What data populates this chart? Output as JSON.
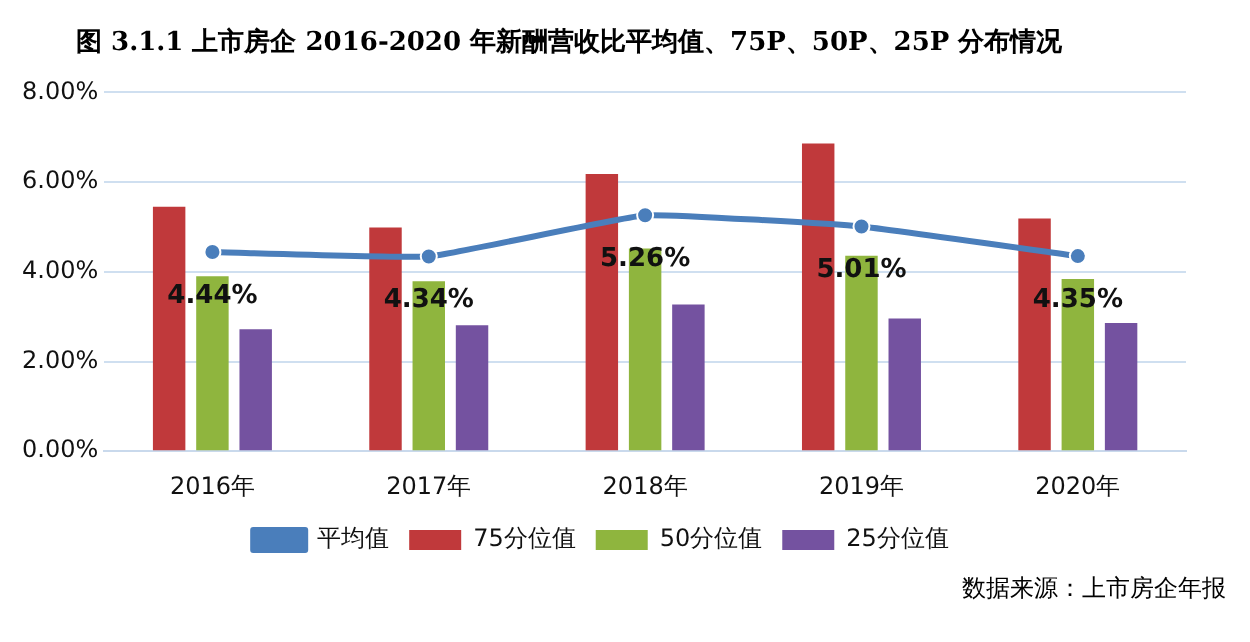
{
  "chart_data": {
    "type": "bar",
    "title": "图 3.1.1 上市房企 2016-2020 年新酬营收比平均值、75P、50P、25P 分布情况",
    "categories": [
      "2016年",
      "2017年",
      "2018年",
      "2019年",
      "2020年"
    ],
    "series": [
      {
        "name": "75分位值",
        "color": "#c0393b",
        "values": [
          5.45,
          4.99,
          6.18,
          6.86,
          5.19
        ]
      },
      {
        "name": "50分位值",
        "color": "#8fb53e",
        "values": [
          3.9,
          3.79,
          4.52,
          4.36,
          3.84
        ]
      },
      {
        "name": "25分位值",
        "color": "#7452a0",
        "values": [
          2.72,
          2.81,
          3.27,
          2.96,
          2.86
        ]
      },
      {
        "name": "平均值",
        "type": "line",
        "color": "#4a7ebb",
        "marker": "circle",
        "values": [
          4.44,
          4.34,
          5.26,
          5.01,
          4.35
        ],
        "value_labels": [
          "4.44%",
          "4.34%",
          "5.26%",
          "5.01%",
          "4.35%"
        ]
      }
    ],
    "ylim": [
      0,
      8
    ],
    "yticks": [
      {
        "value": 0,
        "label": "0.00%"
      },
      {
        "value": 2,
        "label": "2.00%"
      },
      {
        "value": 4,
        "label": "4.00%"
      },
      {
        "value": 6,
        "label": "6.00%"
      },
      {
        "value": 8,
        "label": "8.00%"
      }
    ],
    "grid": "y",
    "legend": "bottom",
    "annotations": [
      "数据来源：上市房企年报"
    ]
  }
}
